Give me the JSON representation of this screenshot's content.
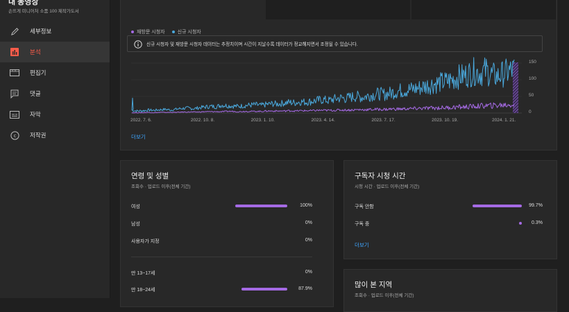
{
  "sidebar": {
    "title": "내 동영상",
    "subtitle": "손뜨게 미니어처 소품 100 제작가도서",
    "items": [
      {
        "label": "세부정보",
        "icon": "pencil-icon"
      },
      {
        "label": "분석",
        "icon": "analytics-icon"
      },
      {
        "label": "편집기",
        "icon": "film-icon"
      },
      {
        "label": "댓글",
        "icon": "comment-icon"
      },
      {
        "label": "자막",
        "icon": "subtitles-icon"
      },
      {
        "label": "저작권",
        "icon": "copyright-icon"
      }
    ]
  },
  "chart": {
    "legend": [
      {
        "name": "재방문 시청자",
        "color": "#a56ae4"
      },
      {
        "name": "신규 시청자",
        "color": "#4aa8dc"
      }
    ],
    "notice": "신규 시청자 및 재방문 시청자 데이터는 추정치이며 시간이 지날수록 데이터가 정교해지면서 조정될 수 있습니다.",
    "more_label": "더보기"
  },
  "chart_data": {
    "type": "line",
    "x_ticks": [
      "2022. 7. 6.",
      "2022. 10. 8.",
      "2023. 1. 10.",
      "2023. 4. 14.",
      "2023. 7. 17.",
      "2023. 10. 19.",
      "2024. 1. 21."
    ],
    "y_ticks": [
      150,
      100,
      50,
      0
    ],
    "ylim": [
      0,
      150
    ],
    "series": [
      {
        "name": "신규 시청자",
        "color": "#4aa8dc",
        "values": [
          8,
          6,
          7,
          9,
          8,
          10,
          11,
          9,
          12,
          14,
          15,
          13,
          16,
          18,
          20,
          19,
          24,
          22,
          21,
          20,
          22,
          24,
          25,
          23,
          26,
          28,
          27,
          30,
          32,
          31,
          34,
          33,
          35,
          38,
          40,
          37,
          42,
          45,
          44,
          48,
          50,
          47,
          52,
          55,
          58,
          56,
          60,
          65,
          68,
          70,
          72,
          75,
          80,
          85,
          88,
          92,
          95,
          100,
          108,
          112,
          118,
          125,
          120,
          128,
          115,
          110,
          118,
          124,
          130
        ]
      },
      {
        "name": "재방문 시청자",
        "color": "#a56ae4",
        "values": [
          1,
          1,
          1,
          2,
          1,
          2,
          2,
          2,
          2,
          3,
          3,
          3,
          3,
          4,
          4,
          4,
          4,
          5,
          5,
          4,
          5,
          5,
          5,
          5,
          6,
          6,
          6,
          6,
          7,
          6,
          7,
          7,
          7,
          8,
          8,
          8,
          8,
          9,
          9,
          9,
          10,
          10,
          10,
          11,
          11,
          11,
          12,
          12,
          12,
          13,
          13,
          14,
          14,
          15,
          15,
          16,
          16,
          17,
          18,
          18,
          19,
          20,
          21,
          22,
          22,
          23,
          24,
          25,
          26
        ]
      }
    ]
  },
  "age_gender": {
    "title": "연령 및 성별",
    "subtitle": "조회수 · 업로드 이후(전체 기간)",
    "gender_rows": [
      {
        "label": "여성",
        "value": "100%",
        "fraction": 1.0
      },
      {
        "label": "남성",
        "value": "0%",
        "fraction": 0
      },
      {
        "label": "사용자가 지정",
        "value": "0%",
        "fraction": 0
      }
    ],
    "age_rows": [
      {
        "label": "만 13~17세",
        "value": "0%",
        "fraction": 0
      },
      {
        "label": "만 18~24세",
        "value": "87.9%",
        "fraction": 0.879
      }
    ]
  },
  "subscriber_watch": {
    "title": "구독자 시청 시간",
    "subtitle": "시청 시간 · 업로드 이후(전체 기간)",
    "rows": [
      {
        "label": "구독 안함",
        "value": "99.7%",
        "fraction": 0.997
      },
      {
        "label": "구독 중",
        "value": "0.3%",
        "fraction": 0.003
      }
    ],
    "more_label": "더보기"
  },
  "top_regions": {
    "title": "많이 본 지역",
    "subtitle": "조회수 · 업로드 이후(전체 기간)"
  }
}
